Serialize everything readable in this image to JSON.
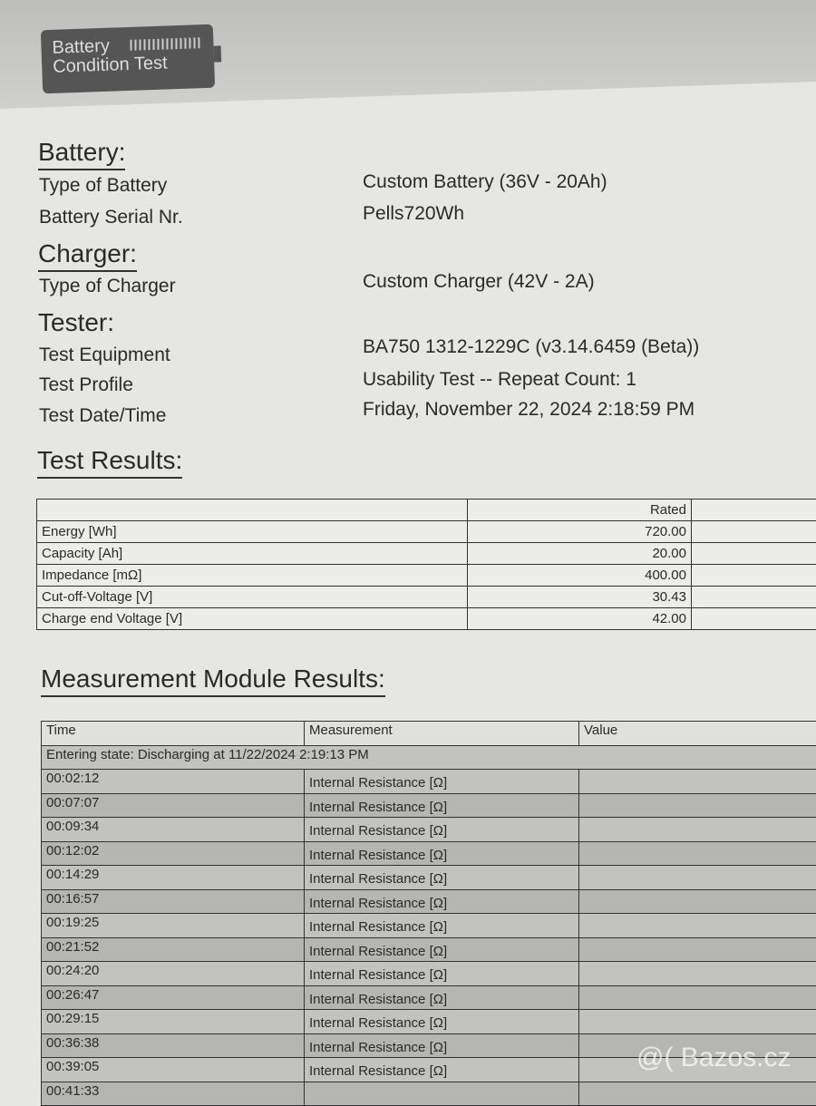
{
  "logo": {
    "line1": "Battery",
    "line2": "Condition Test"
  },
  "battery": {
    "heading": "Battery:",
    "type_label": "Type of Battery",
    "type_value": "Custom Battery (36V - 20Ah)",
    "serial_label": "Battery Serial Nr.",
    "serial_value": "Pells720Wh"
  },
  "charger": {
    "heading": "Charger:",
    "type_label": "Type of Charger",
    "type_value": "Custom Charger (42V - 2A)"
  },
  "tester": {
    "heading": "Tester:",
    "equipment_label": "Test Equipment",
    "equipment_value": "BA750 1312-1229C (v3.14.6459 (Beta))",
    "profile_label": "Test Profile",
    "profile_value": "Usability Test -- Repeat Count: 1",
    "datetime_label": "Test Date/Time",
    "datetime_value": "Friday, November 22, 2024 2:18:59 PM"
  },
  "test_results": {
    "heading": "Test Results:",
    "rated_header": "Rated",
    "rows": [
      {
        "label": "Energy [Wh]",
        "rated": "720.00"
      },
      {
        "label": "Capacity [Ah]",
        "rated": "20.00"
      },
      {
        "label": "Impedance [mΩ]",
        "rated": "400.00"
      },
      {
        "label": "Cut-off-Voltage [V]",
        "rated": "30.43"
      },
      {
        "label": "Charge end Voltage [V]",
        "rated": "42.00"
      }
    ]
  },
  "measurement": {
    "heading": "Measurement Module Results:",
    "columns": [
      "Time",
      "Measurement",
      "Value"
    ],
    "state_row": "Entering state: Discharging at 11/22/2024 2:19:13 PM",
    "rows": [
      {
        "time": "00:02:12",
        "measurement": "Internal Resistance [Ω]"
      },
      {
        "time": "00:07:07",
        "measurement": "Internal Resistance [Ω]"
      },
      {
        "time": "00:09:34",
        "measurement": "Internal Resistance [Ω]"
      },
      {
        "time": "00:12:02",
        "measurement": "Internal Resistance [Ω]"
      },
      {
        "time": "00:14:29",
        "measurement": "Internal Resistance [Ω]"
      },
      {
        "time": "00:16:57",
        "measurement": "Internal Resistance [Ω]"
      },
      {
        "time": "00:19:25",
        "measurement": "Internal Resistance [Ω]"
      },
      {
        "time": "00:21:52",
        "measurement": "Internal Resistance [Ω]"
      },
      {
        "time": "00:24:20",
        "measurement": "Internal Resistance [Ω]"
      },
      {
        "time": "00:26:47",
        "measurement": "Internal Resistance [Ω]"
      },
      {
        "time": "00:29:15",
        "measurement": "Internal Resistance [Ω]"
      },
      {
        "time": "00:36:38",
        "measurement": "Internal Resistance [Ω]"
      },
      {
        "time": "00:39:05",
        "measurement": "Internal Resistance [Ω]"
      },
      {
        "time": "00:41:33",
        "measurement": ""
      }
    ]
  },
  "watermark": "@( Bazos.cz"
}
